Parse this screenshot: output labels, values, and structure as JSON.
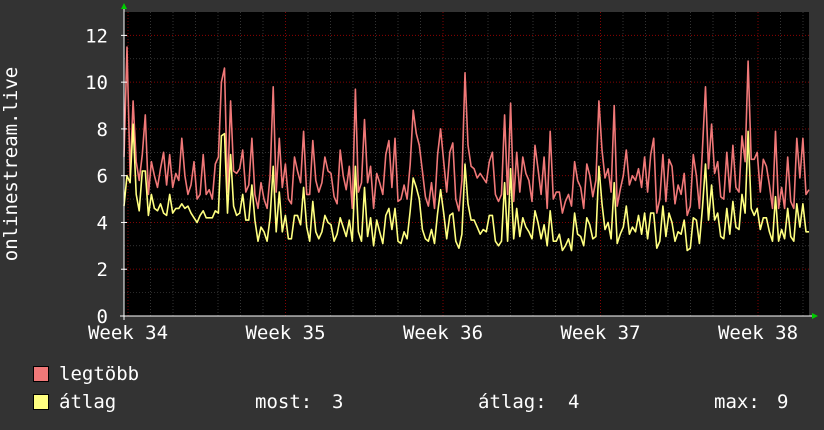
{
  "chart_data": {
    "type": "line",
    "ylabel": "onlinestream.live",
    "ylim": [
      0,
      13
    ],
    "yticks": [
      0,
      2,
      4,
      6,
      8,
      10,
      12
    ],
    "x_tick_labels": [
      "Week 34",
      "Week 35",
      "Week 36",
      "Week 37",
      "Week 38"
    ],
    "grid": true,
    "series": [
      {
        "name": "legtöbb",
        "color": "#f07878",
        "values": [
          6.8,
          11.5,
          6.0,
          9.2,
          6.6,
          5.8,
          6.9,
          8.6,
          5.2,
          6.6,
          6.0,
          5.5,
          6.3,
          7.0,
          5.6,
          6.9,
          5.5,
          6.1,
          5.8,
          7.6,
          6.0,
          5.2,
          5.6,
          6.6,
          5.0,
          5.2,
          6.9,
          5.2,
          5.4,
          5.0,
          6.5,
          6.8,
          10.0,
          10.6,
          5.3,
          9.2,
          6.2,
          6.1,
          6.3,
          7.1,
          5.3,
          5.6,
          7.6,
          5.2,
          4.6,
          5.7,
          5.0,
          4.6,
          6.0,
          9.8,
          5.3,
          7.6,
          5.5,
          6.5,
          5.0,
          4.8,
          6.8,
          6.2,
          5.7,
          7.9,
          5.2,
          5.2,
          7.5,
          5.8,
          5.3,
          5.7,
          6.8,
          6.2,
          6.1,
          5.1,
          4.8,
          7.1,
          6.0,
          5.4,
          6.4,
          4.6,
          9.7,
          5.3,
          5.7,
          8.4,
          5.7,
          6.4,
          4.6,
          6.1,
          5.7,
          5.2,
          6.9,
          7.5,
          5.5,
          7.6,
          4.9,
          5.0,
          5.6,
          5.0,
          6.5,
          8.8,
          7.8,
          7.3,
          6.2,
          5.1,
          4.7,
          5.7,
          4.6,
          6.9,
          8.0,
          6.6,
          5.3,
          7.0,
          7.4,
          5.0,
          4.5,
          5.8,
          10.4,
          7.3,
          6.4,
          6.3,
          5.9,
          6.1,
          5.9,
          5.7,
          6.6,
          7.0,
          5.2,
          4.9,
          5.2,
          8.6,
          5.2,
          9.1,
          4.9,
          7.0,
          5.3,
          6.8,
          6.1,
          5.8,
          4.9,
          7.3,
          6.3,
          5.2,
          6.8,
          4.6,
          7.9,
          5.0,
          5.3,
          5.3,
          4.4,
          4.9,
          5.2,
          4.7,
          6.6,
          5.8,
          5.5,
          4.6,
          6.5,
          6.0,
          5.1,
          5.8,
          9.2,
          7.1,
          5.9,
          6.3,
          5.3,
          9.0,
          4.7,
          5.4,
          6.0,
          7.1,
          5.6,
          6.0,
          5.8,
          6.3,
          5.5,
          6.8,
          5.3,
          6.9,
          7.6,
          4.4,
          5.0,
          6.9,
          4.9,
          6.7,
          6.4,
          4.8,
          5.6,
          5.2,
          6.1,
          4.3,
          4.7,
          6.9,
          6.0,
          4.6,
          7.1,
          9.8,
          6.3,
          8.2,
          6.1,
          6.6,
          5.1,
          5.0,
          7.0,
          5.3,
          7.3,
          5.5,
          5.3,
          7.7,
          6.6,
          10.9,
          6.7,
          6.7,
          7.0,
          5.3,
          6.7,
          6.4,
          5.6,
          4.6,
          7.9,
          4.6,
          5.5,
          4.6,
          6.8,
          4.9,
          4.6,
          7.6,
          5.9,
          7.6,
          5.2,
          5.4
        ]
      },
      {
        "name": "átlag",
        "color": "#ffff80",
        "values": [
          4.7,
          6.0,
          5.7,
          8.2,
          5.2,
          4.5,
          6.2,
          6.2,
          4.3,
          5.2,
          4.6,
          4.5,
          4.8,
          4.4,
          4.3,
          5.2,
          4.4,
          4.6,
          4.6,
          4.8,
          4.6,
          4.7,
          4.4,
          4.2,
          4.0,
          4.3,
          4.5,
          4.2,
          4.2,
          4.2,
          4.5,
          4.4,
          7.7,
          7.8,
          4.4,
          6.9,
          4.7,
          4.3,
          4.4,
          5.2,
          4.1,
          4.1,
          5.6,
          4.1,
          3.2,
          3.8,
          3.6,
          3.2,
          4.2,
          6.4,
          3.6,
          5.3,
          3.6,
          4.3,
          3.3,
          3.3,
          4.3,
          4.3,
          3.9,
          5.5,
          3.8,
          3.2,
          4.9,
          3.6,
          3.3,
          3.6,
          4.3,
          4.0,
          3.9,
          3.2,
          3.5,
          4.2,
          3.8,
          3.4,
          4.1,
          3.2,
          6.4,
          3.6,
          3.2,
          5.5,
          3.4,
          4.2,
          3.0,
          4.1,
          3.6,
          3.1,
          4.3,
          4.6,
          3.7,
          4.6,
          3.2,
          3.1,
          3.6,
          3.3,
          4.5,
          5.9,
          5.5,
          5.0,
          3.7,
          3.3,
          3.2,
          3.7,
          3.1,
          4.4,
          5.4,
          4.4,
          3.3,
          4.3,
          4.4,
          3.2,
          2.9,
          3.5,
          6.5,
          4.8,
          4.1,
          4.1,
          3.8,
          3.5,
          3.7,
          3.6,
          4.3,
          4.3,
          3.2,
          3.0,
          3.2,
          5.7,
          3.2,
          6.3,
          3.3,
          4.6,
          3.4,
          4.2,
          3.8,
          3.6,
          3.3,
          4.5,
          4.0,
          3.3,
          3.9,
          3.0,
          4.5,
          3.2,
          3.2,
          3.5,
          2.8,
          3.0,
          3.3,
          2.8,
          4.4,
          3.5,
          3.4,
          3.0,
          4.2,
          3.9,
          3.3,
          3.4,
          6.4,
          4.8,
          3.7,
          4.0,
          3.3,
          5.7,
          3.1,
          3.5,
          3.8,
          4.7,
          3.5,
          3.8,
          3.6,
          4.3,
          3.5,
          4.4,
          3.3,
          4.4,
          4.4,
          2.9,
          3.2,
          4.7,
          3.4,
          4.4,
          4.0,
          3.2,
          3.6,
          3.5,
          4.1,
          2.8,
          2.9,
          4.2,
          4.1,
          3.1,
          4.6,
          6.5,
          4.1,
          5.6,
          4.1,
          4.4,
          3.4,
          3.3,
          4.6,
          3.5,
          4.9,
          3.8,
          3.7,
          5.2,
          4.4,
          7.9,
          4.6,
          4.3,
          4.6,
          3.7,
          4.2,
          4.2,
          3.6,
          3.2,
          5.1,
          3.2,
          3.7,
          3.3,
          4.6,
          3.4,
          3.2,
          4.8,
          3.8,
          4.8,
          3.6,
          3.6
        ]
      }
    ],
    "legend": {
      "placement": "bottom-left"
    },
    "stats": [
      {
        "label": "most:",
        "value": "3"
      },
      {
        "label": "átlag:",
        "value": "4"
      },
      {
        "label": "max:",
        "value": "9"
      }
    ]
  },
  "colors": {
    "background": "#333333",
    "plot_background": "#000000",
    "grid_major": "#8b0000",
    "grid_minor": "#555555",
    "axis": "#ffffff",
    "arrow": "#00cc00"
  }
}
